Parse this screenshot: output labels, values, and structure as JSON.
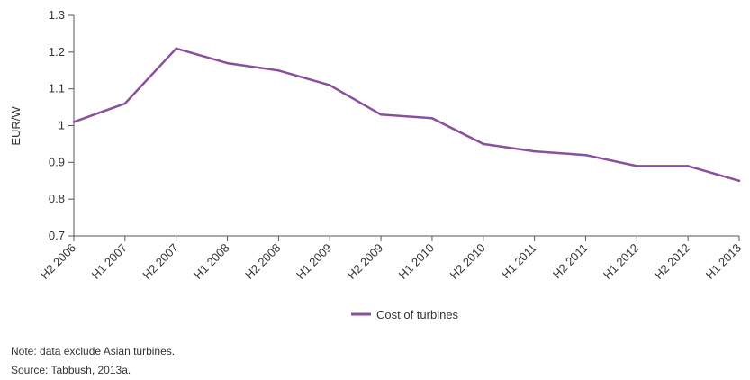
{
  "chart_data": {
    "type": "line",
    "categories": [
      "H2 2006",
      "H1 2007",
      "H2 2007",
      "H1 2008",
      "H2 2008",
      "H1 2009",
      "H2 2009",
      "H1 2010",
      "H2 2010",
      "H1 2011",
      "H2 2011",
      "H1 2012",
      "H2 2012",
      "H1 2013"
    ],
    "series": [
      {
        "name": "Cost of turbines",
        "values": [
          1.01,
          1.06,
          1.21,
          1.17,
          1.15,
          1.11,
          1.03,
          1.02,
          0.95,
          0.93,
          0.92,
          0.89,
          0.89,
          0.85
        ]
      }
    ],
    "ylabel": "EUR/W",
    "xlabel": "",
    "ylim": [
      0.7,
      1.3
    ],
    "yticks": [
      "0.7",
      "0.8",
      "0.9",
      "1",
      "1.1",
      "1.2",
      "1.3"
    ],
    "grid": false,
    "legend_position": "bottom-center",
    "colors": {
      "line": "#8a4f9e",
      "axis": "#555555"
    }
  },
  "notes": {
    "note": "Note: data exclude Asian turbines.",
    "source": "Source: Tabbush, 2013a."
  }
}
